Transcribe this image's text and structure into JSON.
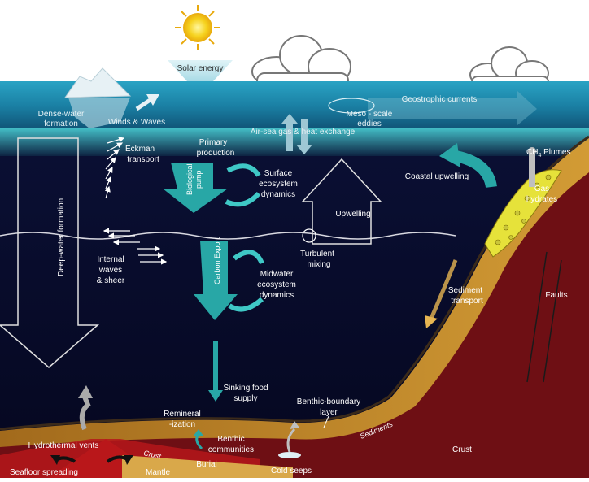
{
  "labels": {
    "solar_energy": "Solar energy",
    "dense_water_1": "Dense-water",
    "dense_water_2": "formation",
    "winds_waves": "Winds & Waves",
    "air_sea": "Air-sea gas & heat exchange",
    "meso_1": "Meso - scale",
    "meso_2": "eddies",
    "geostrophic": "Geostrophic currents",
    "eckman_1": "Eckman",
    "eckman_2": "transport",
    "primary_1": "Primary",
    "primary_2": "production",
    "biological_pump_1": "Biological",
    "biological_pump_2": "pump",
    "surface_eco_1": "Surface",
    "surface_eco_2": "ecosystem",
    "surface_eco_3": "dynamics",
    "coastal_upwelling": "Coastal upwelling",
    "ch4_plumes_a": "CH",
    "ch4_plumes_sub": "4",
    "ch4_plumes_b": " Plumes",
    "gas_hydrates_1": "Gas",
    "gas_hydrates_2": "hydrates",
    "deep_water": "Deep-water formation",
    "upwelling": "Upwelling",
    "internal_1": "Internal",
    "internal_2": "waves",
    "internal_3": "& sheer",
    "carbon_export": "Carbon Export",
    "turbulent_1": "Turbulent",
    "turbulent_2": "mixing",
    "midwater_1": "Midwater",
    "midwater_2": "ecosystem",
    "midwater_3": "dynamics",
    "sediment_transport_1": "Sediment",
    "sediment_transport_2": "transport",
    "faults": "Faults",
    "sinking_1": "Sinking food",
    "sinking_2": "supply",
    "benthic_boundary_1": "Benthic-boundary",
    "benthic_boundary_2": "layer",
    "remineral_1": "Remineral",
    "remineral_2": "-ization",
    "benthic_comm_1": "Benthic",
    "benthic_comm_2": "communities",
    "hydrothermal": "Hydrothermal vents",
    "crust_small": "Crust",
    "sediments": "Sediments",
    "crust": "Crust",
    "seafloor": "Seafloor spreading",
    "mantle": "Mantle",
    "burial": "Burial",
    "cold_seeps": "Cold seeps"
  },
  "colors": {
    "sky": "#ffffff",
    "surface_water": "#1e8fb0",
    "surface_glow": "#3fb8c8",
    "deep_water": "#070a2b",
    "teal_arrow": "#28a7a6",
    "sediment": "#c8922a",
    "crust": "#6e0f14",
    "hydrate": "#e6e23a",
    "vent": "#d21f1f"
  }
}
